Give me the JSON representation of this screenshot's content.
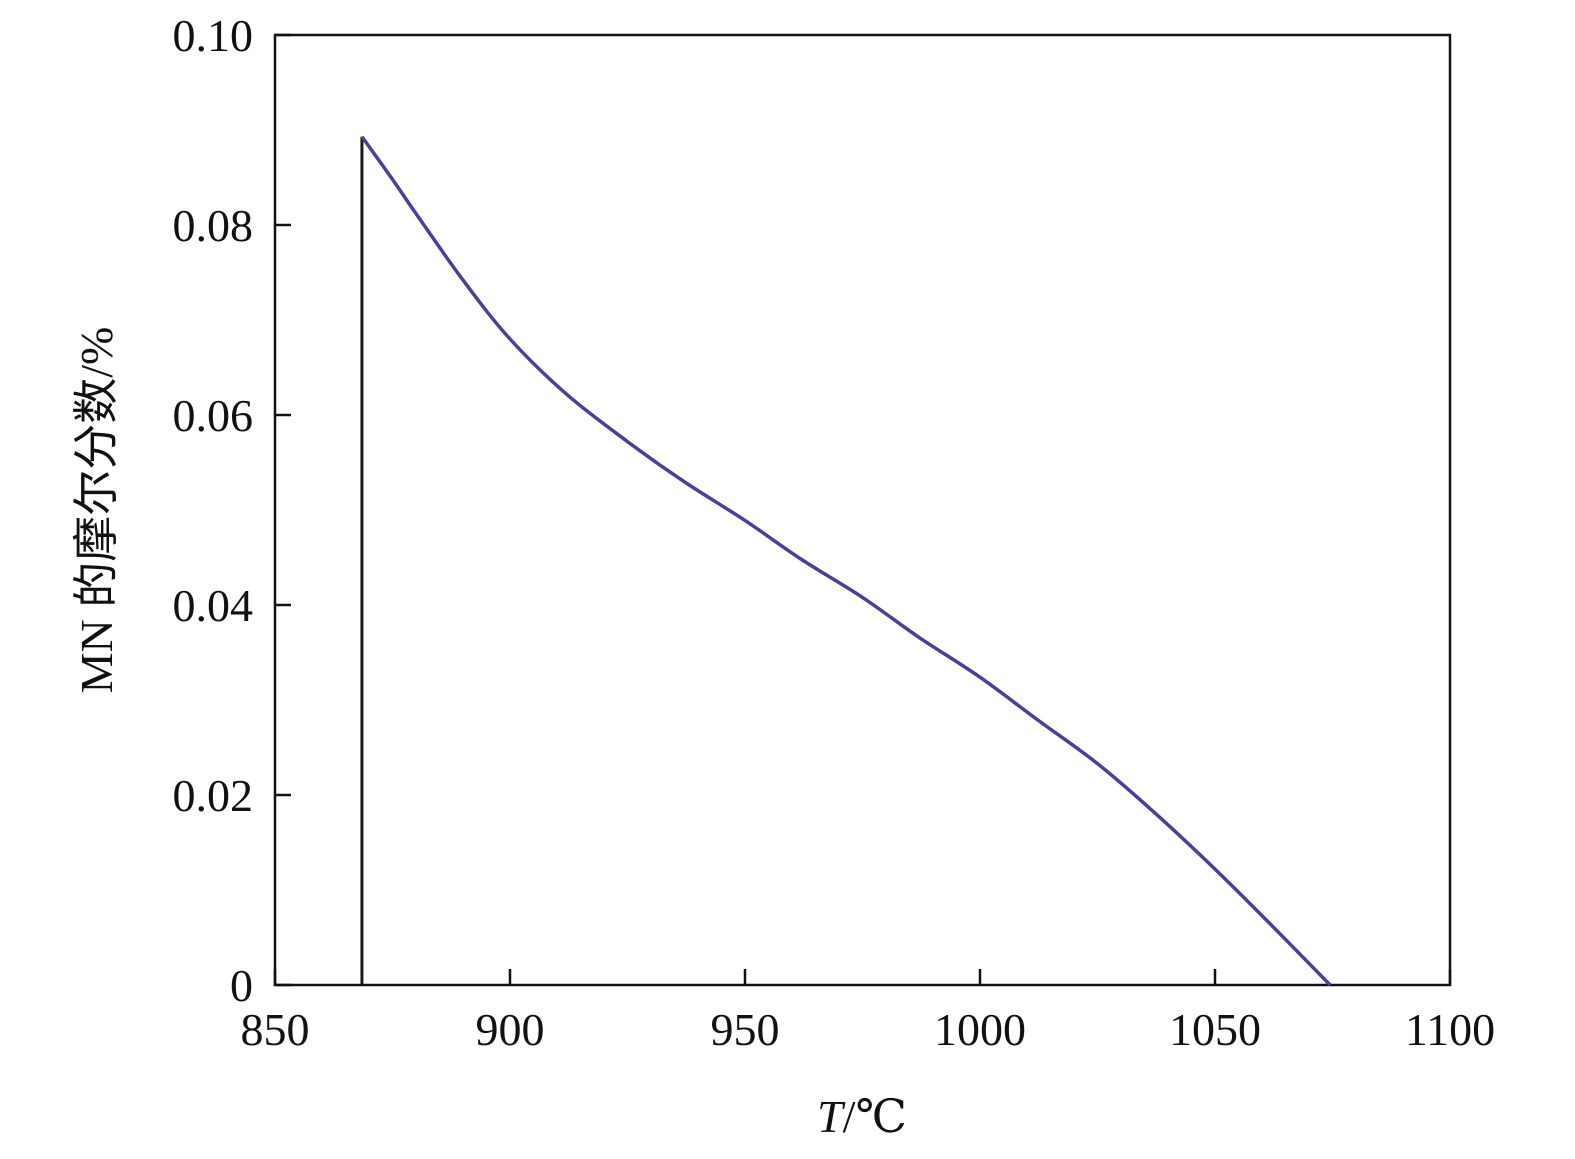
{
  "chart_data": {
    "type": "line",
    "title": "",
    "xlabel": "T/℃",
    "xlabel_var": "T",
    "xlabel_unit": "/℃",
    "ylabel": "MN 的摩尔分数/%",
    "xlim": [
      850,
      1100
    ],
    "ylim": [
      0,
      0.1
    ],
    "xticks": [
      850,
      900,
      950,
      1000,
      1050,
      1100
    ],
    "xtick_labels": [
      "850",
      "900",
      "950",
      "1000",
      "1050",
      "1100"
    ],
    "yticks": [
      0,
      0.02,
      0.04,
      0.06,
      0.08,
      0.1
    ],
    "ytick_labels": [
      "0",
      "0.02",
      "0.04",
      "0.06",
      "0.08",
      "0.10"
    ],
    "grid": false,
    "series": [
      {
        "color": "#1a1a1a",
        "x": [
          868.5,
          868.5
        ],
        "y": [
          0,
          0.0893
        ]
      },
      {
        "color": "#4b3f9a",
        "x": [
          868.5,
          875,
          880,
          890,
          900,
          912,
          925,
          937,
          950,
          962,
          975,
          987,
          1000,
          1012,
          1025,
          1037,
          1050,
          1062,
          1074.5
        ],
        "y": [
          0.0893,
          0.0848,
          0.0812,
          0.0742,
          0.068,
          0.0622,
          0.0572,
          0.053,
          0.0489,
          0.0448,
          0.0408,
          0.0366,
          0.0324,
          0.028,
          0.0233,
          0.0182,
          0.0122,
          0.0063,
          0.0
        ]
      }
    ]
  }
}
